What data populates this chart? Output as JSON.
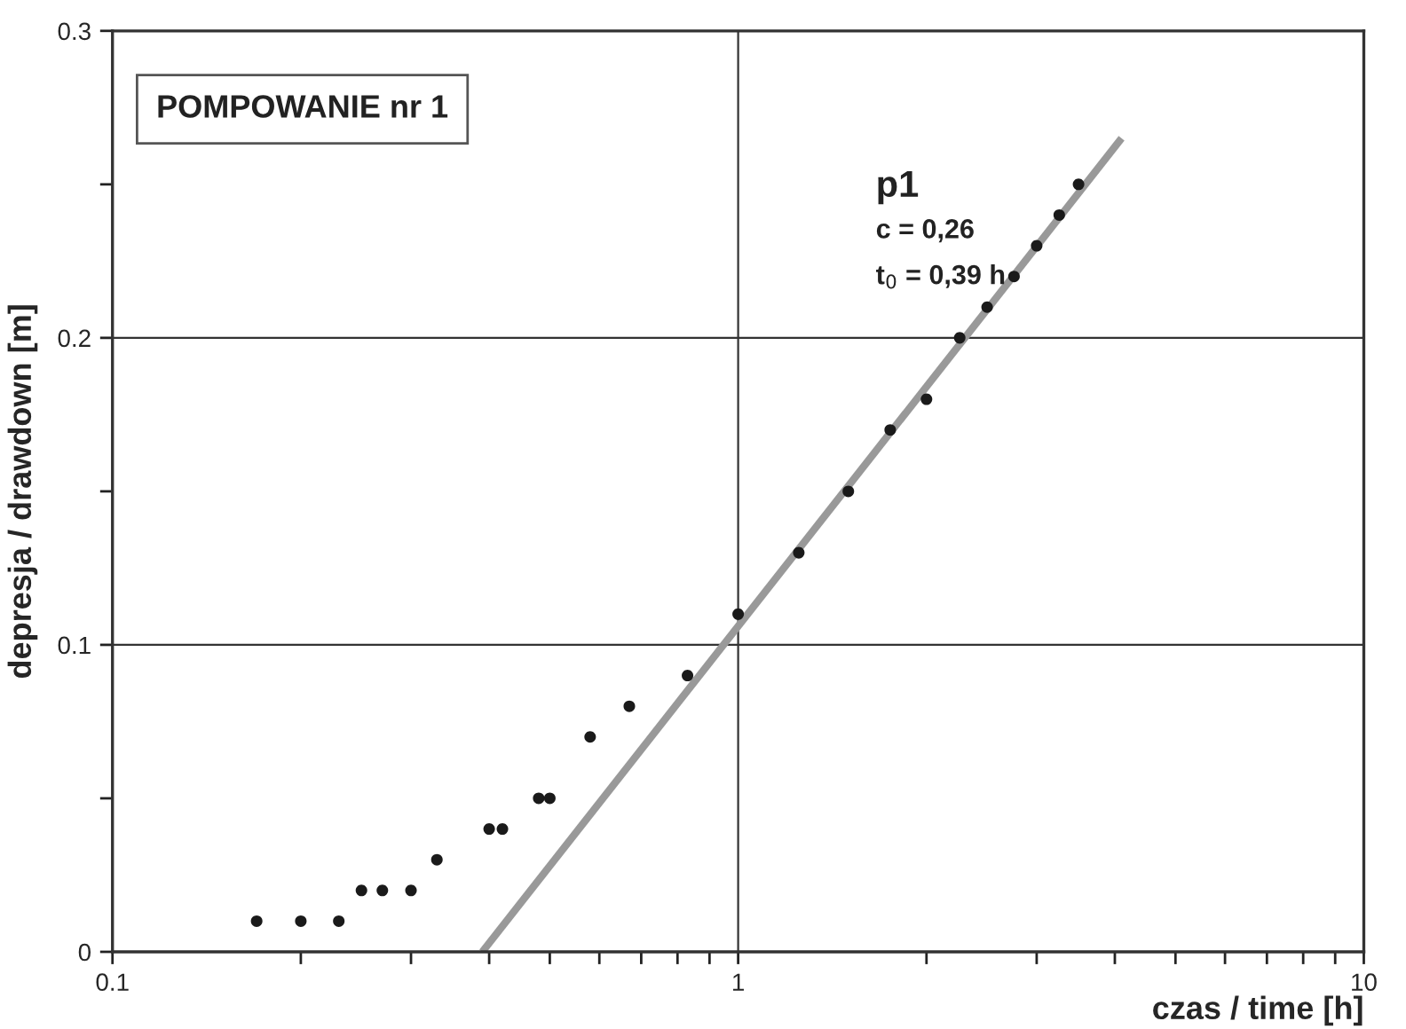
{
  "chart_data": {
    "type": "scatter",
    "xlabel": "czas / time [h]",
    "ylabel": "depresja / drawdown [m]",
    "log": "x",
    "grid": true,
    "marker": "circle",
    "xlim": [
      0.1,
      10
    ],
    "ylim": [
      0,
      0.3
    ],
    "xticks": [
      0.1,
      {
        "value": 0.2,
        "label": null
      },
      {
        "value": 0.3,
        "label": null
      },
      {
        "value": 0.4,
        "label": null
      },
      {
        "value": 0.5,
        "label": null
      },
      {
        "value": 0.6,
        "label": null
      },
      {
        "value": 0.7,
        "label": null
      },
      {
        "value": 0.8,
        "label": null
      },
      {
        "value": 0.9,
        "label": null
      },
      1,
      {
        "value": 2,
        "label": null
      },
      {
        "value": 3,
        "label": null
      },
      {
        "value": 4,
        "label": null
      },
      {
        "value": 5,
        "label": null
      },
      {
        "value": 6,
        "label": null
      },
      {
        "value": 7,
        "label": null
      },
      {
        "value": 8,
        "label": null
      },
      {
        "value": 9,
        "label": null
      },
      10
    ],
    "yticks": [
      0,
      {
        "value": 0.05,
        "label": null
      },
      0.1,
      {
        "value": 0.15,
        "label": null
      },
      0.2,
      {
        "value": 0.25,
        "label": null
      },
      0.3
    ],
    "series": [
      {
        "color": "#1a1a1a",
        "x": [
          0.17,
          0.2,
          0.23,
          0.25,
          0.27,
          0.3,
          0.33,
          0.4,
          0.42,
          0.48,
          0.5,
          0.58,
          0.67,
          0.83,
          1,
          1.25,
          1.5,
          1.75,
          2.0,
          2.26,
          2.5,
          2.76,
          3.0,
          3.26,
          3.5
        ],
        "values": [
          0.01,
          0.01,
          0.01,
          0.02,
          0.02,
          0.02,
          0.03,
          0.04,
          0.04,
          0.05,
          0.05,
          0.07,
          0.08,
          0.09,
          0.11,
          0.13,
          0.15,
          0.17,
          0.18,
          0.2,
          0.21,
          0.22,
          0.23,
          0.24,
          0.25
        ]
      },
      {
        "type": "line",
        "name": "p1",
        "color": "#999999",
        "marker": "none",
        "line_style": "solid",
        "x": [
          0.39,
          4.1
        ],
        "values": [
          0,
          0.265
        ]
      }
    ],
    "annotations": [
      "POMPOWANIE nr 1",
      "c = 0,26",
      "t$_{0}$ = 0,39 h"
    ]
  }
}
